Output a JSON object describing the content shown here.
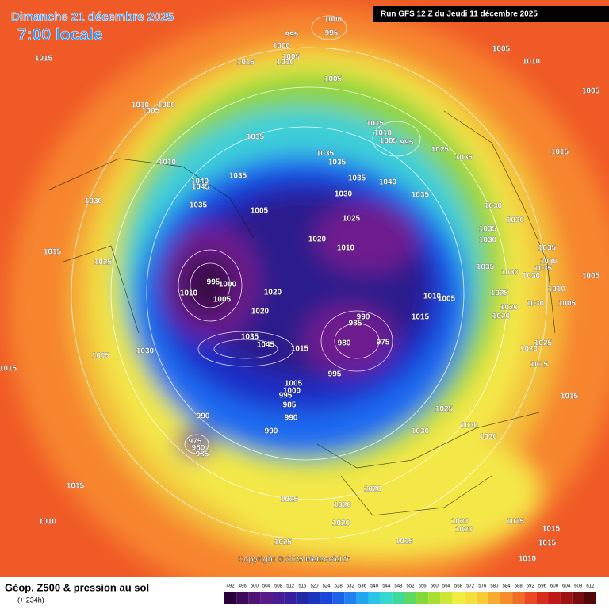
{
  "header": {
    "date": "Dimanche 21 décembre 2025",
    "time": "7:00 locale",
    "run": "Run GFS 12 Z du Jeudi 11 décembre 2025"
  },
  "map": {
    "copyright": "Copyright © 2025 Meteociel.fr",
    "isobar_labels": [
      "1000",
      "995",
      "995",
      "1000",
      "1005",
      "1010",
      "1015",
      "1015",
      "1005",
      "1005",
      "1010",
      "1005",
      "1010",
      "1000",
      "1005",
      "1035",
      "1015",
      "1010",
      "1005",
      "995",
      "1025",
      "1035",
      "1015",
      "1035",
      "1035",
      "1010",
      "1035",
      "1040",
      "1045",
      "1035",
      "1040",
      "1035",
      "1030",
      "1035",
      "1030",
      "1030",
      "1025",
      "1005",
      "1015",
      "1025",
      "1020",
      "1010",
      "1035",
      "1030",
      "1035",
      "1030",
      "1035",
      "1030",
      "1035",
      "1030",
      "1005",
      "1010",
      "1005",
      "1030",
      "1025",
      "995",
      "1000",
      "1010",
      "1005",
      "1020",
      "1010",
      "1005",
      "1020",
      "1015",
      "1020",
      "1020",
      "990",
      "985",
      "975",
      "980",
      "1035",
      "1045",
      "1015",
      "1030",
      "1015",
      "1015",
      "995",
      "1005",
      "1000",
      "995",
      "985",
      "990",
      "990",
      "990",
      "975",
      "980",
      "985",
      "1025",
      "1030",
      "1030",
      "1030",
      "1015",
      "1015",
      "1025",
      "1020",
      "1015",
      "1025",
      "1020",
      "1020",
      "1020",
      "1020",
      "1015",
      "1015",
      "1015",
      "1015",
      "1025",
      "1010",
      "1010",
      "1020",
      "1030"
    ]
  },
  "footer": {
    "title": "Géop. Z500 & pression au sol",
    "subtitle": "(+ 234h)",
    "scale": [
      "492",
      "496",
      "500",
      "504",
      "508",
      "512",
      "516",
      "520",
      "524",
      "528",
      "532",
      "536",
      "540",
      "544",
      "548",
      "552",
      "556",
      "560",
      "564",
      "568",
      "572",
      "576",
      "580",
      "584",
      "588",
      "592",
      "596",
      "600",
      "604",
      "608",
      "612"
    ]
  }
}
